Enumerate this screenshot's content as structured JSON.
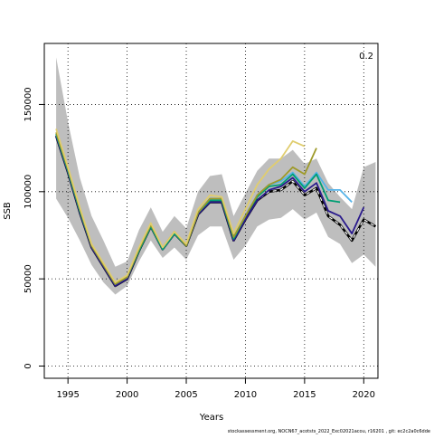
{
  "chart_data": {
    "type": "line",
    "title": "",
    "xlabel": "Years",
    "ylabel": "SSB",
    "corner_label": "0.2",
    "footer": "stockassessment.org, NOCN67_acotsts_2022_Exc02021acou, r16201 , git: ec2c2a0c6dde",
    "xlim": [
      1993,
      2021.2
    ],
    "ylim": [
      -7000,
      185000
    ],
    "xticks": [
      1995,
      2000,
      2005,
      2010,
      2015,
      2020
    ],
    "yticks": [
      0,
      50000,
      100000,
      150000
    ],
    "grid": true,
    "grid_style": "dotted",
    "band": {
      "x": [
        1994,
        1995,
        1996,
        1997,
        1998,
        1999,
        2000,
        2001,
        2002,
        2003,
        2004,
        2005,
        2006,
        2007,
        2008,
        2009,
        2010,
        2011,
        2012,
        2013,
        2014,
        2015,
        2016,
        2017,
        2018,
        2019,
        2020,
        2021
      ],
      "lower": [
        96000,
        85000,
        72000,
        58000,
        48000,
        41000,
        46000,
        60000,
        72000,
        62000,
        68000,
        61000,
        75000,
        80000,
        80000,
        61000,
        69000,
        80000,
        84000,
        85000,
        90000,
        84000,
        88000,
        74000,
        70000,
        59000,
        64000,
        57000
      ],
      "upper": [
        177000,
        140000,
        108000,
        86000,
        72000,
        57000,
        60000,
        78000,
        91000,
        77000,
        86000,
        79000,
        100000,
        109000,
        110000,
        86000,
        99000,
        112000,
        119000,
        119000,
        124000,
        116000,
        119000,
        105000,
        97000,
        90000,
        114000,
        117000
      ],
      "color": "#bebebe"
    },
    "series": [
      {
        "color": "#000000",
        "dashed": true,
        "x": [
          1994,
          1995,
          1996,
          1997,
          1998,
          1999,
          2000,
          2001,
          2002,
          2003,
          2004,
          2005,
          2006,
          2007,
          2008,
          2009,
          2010,
          2011,
          2012,
          2013,
          2014,
          2015,
          2016,
          2017,
          2018,
          2019,
          2020,
          2021
        ],
        "values": [
          132000,
          111000,
          88000,
          68000,
          57000,
          46000,
          50000,
          66000,
          80000,
          67000,
          76000,
          69000,
          87000,
          94000,
          94000,
          72000,
          84000,
          95000,
          100000,
          101000,
          106000,
          98000,
          102000,
          86000,
          81000,
          72000,
          84000,
          80000
        ]
      },
      {
        "color": "#2a1a8c",
        "x": [
          1994,
          1995,
          1996,
          1997,
          1998,
          1999,
          2000,
          2001,
          2002,
          2003,
          2004,
          2005,
          2006,
          2007,
          2008,
          2009,
          2010,
          2011,
          2012,
          2013,
          2014,
          2015,
          2016,
          2017,
          2018,
          2019,
          2020
        ],
        "values": [
          132000,
          111000,
          88000,
          68000,
          57000,
          46000,
          50000,
          66000,
          80000,
          67000,
          76000,
          69000,
          87000,
          94000,
          94000,
          72000,
          84000,
          95000,
          101000,
          103000,
          108000,
          100000,
          105000,
          89000,
          86000,
          76000,
          91000
        ]
      },
      {
        "color": "#56b4e9",
        "x": [
          1994,
          1995,
          1996,
          1997,
          1998,
          1999,
          2000,
          2001,
          2002,
          2003,
          2004,
          2005,
          2006,
          2007,
          2008,
          2009,
          2010,
          2011,
          2012,
          2013,
          2014,
          2015,
          2016,
          2017,
          2018,
          2019
        ],
        "values": [
          133000,
          112000,
          89000,
          69000,
          58000,
          47000,
          51000,
          67000,
          80000,
          67000,
          76000,
          69000,
          88000,
          96000,
          96000,
          74000,
          86000,
          98000,
          104000,
          106000,
          111000,
          103000,
          111000,
          101000,
          101000,
          94000
        ]
      },
      {
        "color": "#009e73",
        "x": [
          1994,
          1995,
          1996,
          1997,
          1998,
          1999,
          2000,
          2001,
          2002,
          2003,
          2004,
          2005,
          2006,
          2007,
          2008,
          2009,
          2010,
          2011,
          2012,
          2013,
          2014,
          2015,
          2016,
          2017,
          2018
        ],
        "values": [
          133000,
          112000,
          89000,
          69000,
          58000,
          47000,
          51000,
          66000,
          80000,
          67000,
          76000,
          69000,
          88000,
          95000,
          95000,
          73000,
          86000,
          97000,
          103000,
          104000,
          110000,
          102000,
          110000,
          95000,
          94000
        ]
      },
      {
        "color": "#9e9a2a",
        "x": [
          1994,
          1995,
          1996,
          1997,
          1998,
          1999,
          2000,
          2001,
          2002,
          2003,
          2004,
          2005,
          2006,
          2007,
          2008,
          2009,
          2010,
          2011,
          2012,
          2013,
          2014,
          2015,
          2016
        ],
        "values": [
          134000,
          113000,
          90000,
          69000,
          58000,
          47000,
          51000,
          67000,
          81000,
          68000,
          77000,
          69000,
          88000,
          96000,
          96000,
          74000,
          86000,
          98000,
          104000,
          107000,
          114000,
          110000,
          125000
        ]
      },
      {
        "color": "#e0cd6e",
        "x": [
          1994,
          1995,
          1996,
          1997,
          1998,
          1999,
          2000,
          2001,
          2002,
          2003,
          2004,
          2005,
          2006,
          2007,
          2008,
          2009,
          2010,
          2011,
          2012,
          2013,
          2014,
          2015
        ],
        "values": [
          136000,
          114000,
          91000,
          70000,
          59000,
          48000,
          52000,
          68000,
          82000,
          68000,
          77000,
          70000,
          90000,
          98000,
          97000,
          76000,
          90000,
          104000,
          113000,
          119000,
          129000,
          126000
        ]
      }
    ]
  }
}
